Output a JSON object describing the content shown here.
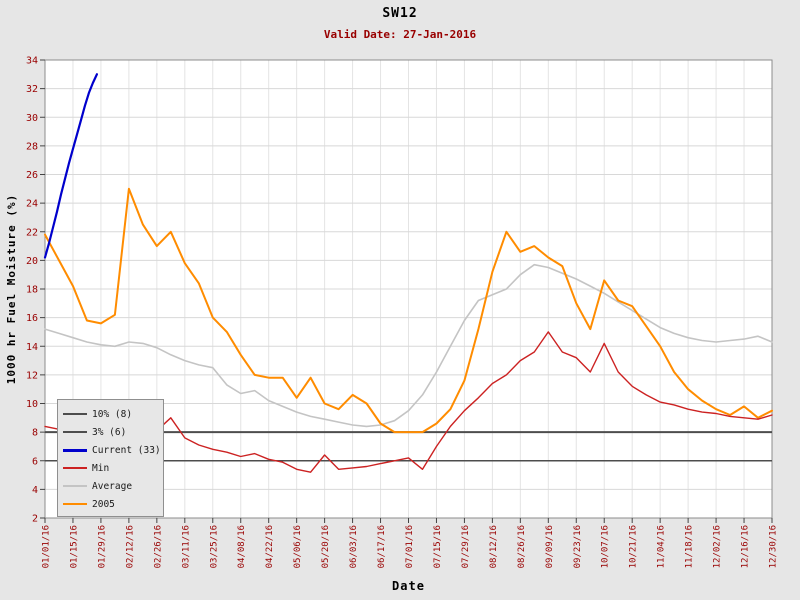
{
  "chart_data": {
    "type": "line",
    "title": "SW12",
    "subtitle": "Valid Date: 27-Jan-2016",
    "xlabel": "Date",
    "ylabel": "1000 hr Fuel Moisture (%)",
    "ylim": [
      2,
      34
    ],
    "y_ticks": [
      2,
      4,
      6,
      8,
      10,
      12,
      14,
      16,
      18,
      20,
      22,
      24,
      26,
      28,
      30,
      32,
      34
    ],
    "x_range_days": [
      0,
      364
    ],
    "x_tick_days": [
      0,
      14,
      28,
      42,
      56,
      70,
      84,
      98,
      112,
      126,
      140,
      154,
      168,
      182,
      196,
      210,
      224,
      238,
      252,
      266,
      280,
      294,
      308,
      322,
      336,
      350,
      364
    ],
    "x_tick_labels": [
      "01/01/16",
      "01/15/16",
      "01/29/16",
      "02/12/16",
      "02/26/16",
      "03/11/16",
      "03/25/16",
      "04/08/16",
      "04/22/16",
      "05/06/16",
      "05/20/16",
      "06/03/16",
      "06/17/16",
      "07/01/16",
      "07/15/16",
      "07/29/16",
      "08/12/16",
      "08/26/16",
      "09/09/16",
      "09/23/16",
      "10/07/16",
      "10/21/16",
      "11/04/16",
      "11/18/16",
      "12/02/16",
      "12/16/16",
      "12/30/16"
    ],
    "grid": true,
    "reference_lines": [
      {
        "label": "10% (8)",
        "y": 8,
        "color": "#4d4d4d",
        "width": 2
      },
      {
        "label": "3% (6)",
        "y": 6,
        "color": "#4d4d4d",
        "width": 1.5
      }
    ],
    "series": [
      {
        "name": "Average",
        "color": "#c4c4c4",
        "width": 1.6,
        "x_start": 0,
        "x_step": 7,
        "values": [
          15.2,
          14.9,
          14.6,
          14.3,
          14.1,
          14.0,
          14.3,
          14.2,
          13.9,
          13.4,
          13.0,
          12.7,
          12.5,
          11.3,
          10.7,
          10.9,
          10.2,
          9.8,
          9.4,
          9.1,
          8.9,
          8.7,
          8.5,
          8.4,
          8.5,
          8.8,
          9.5,
          10.6,
          12.2,
          14.0,
          15.8,
          17.2,
          17.6,
          18.0,
          19.0,
          19.7,
          19.5,
          19.1,
          18.7,
          18.2,
          17.7,
          17.1,
          16.5,
          15.9,
          15.3,
          14.9,
          14.6,
          14.4,
          14.3,
          14.4,
          14.5,
          14.7,
          14.3
        ]
      },
      {
        "name": "2005",
        "color": "#ff8c00",
        "width": 2,
        "x_start": 0,
        "x_step": 7,
        "values": [
          21.8,
          20.0,
          18.2,
          15.8,
          15.6,
          16.2,
          25.0,
          22.5,
          21.0,
          22.0,
          19.8,
          18.4,
          16.0,
          15.0,
          13.4,
          12.0,
          11.8,
          11.8,
          10.4,
          11.8,
          10.0,
          9.6,
          10.6,
          10.0,
          8.6,
          8.0,
          8.0,
          8.0,
          8.6,
          9.6,
          11.6,
          15.2,
          19.2,
          22.0,
          20.6,
          21.0,
          20.2,
          19.6,
          17.0,
          15.2,
          18.6,
          17.2,
          16.8,
          15.4,
          14.0,
          12.2,
          11.0,
          10.2,
          9.6,
          9.2,
          9.8,
          9.0,
          9.5
        ]
      },
      {
        "name": "Min",
        "color": "#cc2222",
        "width": 1.4,
        "x_start": 0,
        "x_step": 7,
        "values": [
          8.4,
          8.2,
          8.1,
          8.0,
          8.0,
          7.9,
          8.0,
          7.8,
          8.1,
          9.0,
          7.6,
          7.1,
          6.8,
          6.6,
          6.3,
          6.5,
          6.1,
          5.9,
          5.4,
          5.2,
          6.4,
          5.4,
          5.5,
          5.6,
          5.8,
          6.0,
          6.2,
          5.4,
          7.0,
          8.4,
          9.5,
          10.4,
          11.4,
          12.0,
          13.0,
          13.6,
          15.0,
          13.6,
          13.2,
          12.2,
          14.2,
          12.2,
          11.2,
          10.6,
          10.1,
          9.9,
          9.6,
          9.4,
          9.3,
          9.1,
          9.0,
          8.9,
          9.2
        ]
      },
      {
        "name": "Current (33)",
        "color": "#0000cc",
        "width": 2.2,
        "x_days": [
          0,
          2,
          4,
          6,
          8,
          10,
          12,
          14,
          16,
          18,
          20,
          22,
          24,
          25,
          26
        ],
        "values": [
          20.2,
          21.2,
          22.3,
          23.4,
          24.6,
          25.7,
          26.8,
          27.8,
          28.8,
          29.8,
          30.8,
          31.7,
          32.4,
          32.7,
          33.0
        ]
      }
    ],
    "legend": {
      "position": "bottom-left",
      "items": [
        {
          "label": "10% (8)",
          "color": "#4d4d4d",
          "thickness": 2
        },
        {
          "label": "3% (6)",
          "color": "#4d4d4d",
          "thickness": 2
        },
        {
          "label": "Current (33)",
          "color": "#0000cc",
          "thickness": 3
        },
        {
          "label": "Min",
          "color": "#cc2222",
          "thickness": 2
        },
        {
          "label": "Average",
          "color": "#c4c4c4",
          "thickness": 2
        },
        {
          "label": "2005",
          "color": "#ff8c00",
          "thickness": 2
        }
      ]
    },
    "style": {
      "page_bg": "#e6e6e6",
      "plot_bg": "#ffffff",
      "grid_color_v": "#e4e4e4",
      "grid_color_h": "#d8d8d8",
      "border_color": "#8c8c8c",
      "tick_color": "#444444",
      "axis_text_color": "#990000",
      "title_color": "#000000",
      "subtitle_color": "#990000"
    }
  }
}
